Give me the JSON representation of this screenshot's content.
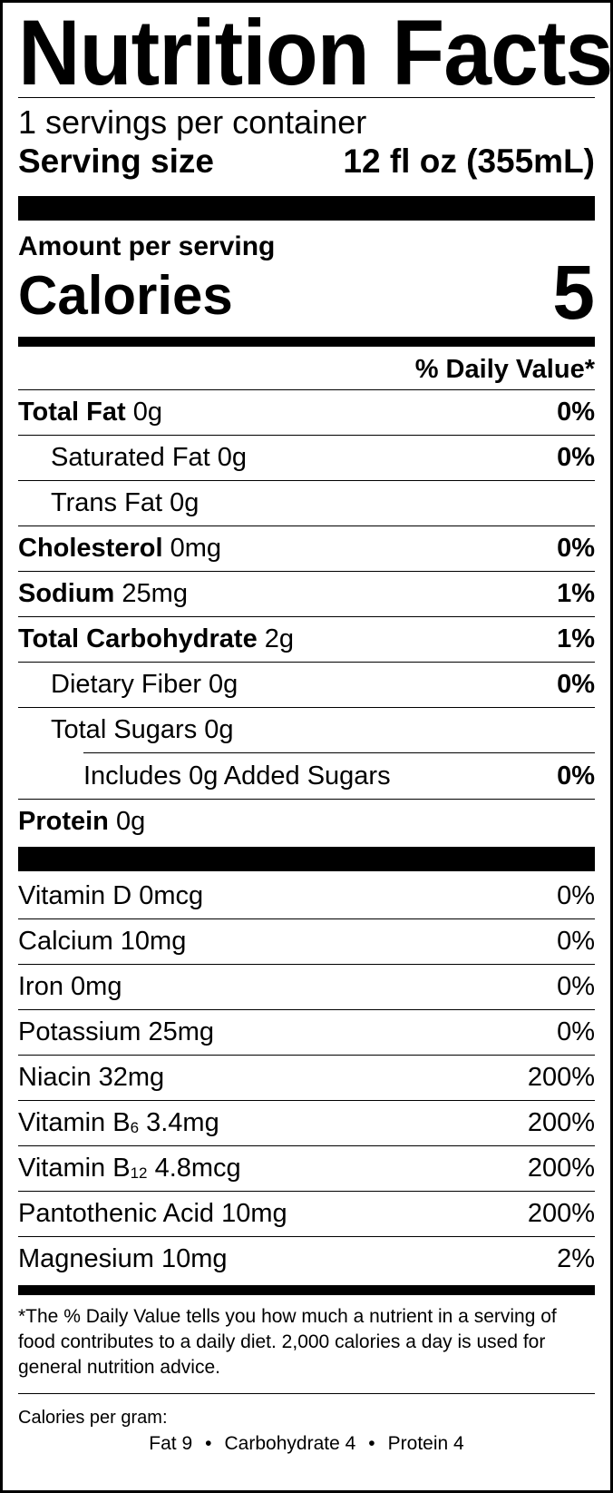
{
  "title": "Nutrition Facts",
  "servings_per_container": "1 servings per container",
  "serving_size": {
    "label": "Serving size",
    "value": "12 fl oz (355mL)"
  },
  "amount_per_serving": "Amount per serving",
  "calories": {
    "label": "Calories",
    "value": "5"
  },
  "daily_value_header": "% Daily Value*",
  "nutrients": {
    "total_fat": {
      "label": "Total Fat",
      "amount": "0g",
      "dv": "0%"
    },
    "saturated_fat": {
      "label": "Saturated Fat 0g",
      "dv": "0%"
    },
    "trans_fat": {
      "label": "Trans Fat 0g"
    },
    "cholesterol": {
      "label": "Cholesterol",
      "amount": "0mg",
      "dv": "0%"
    },
    "sodium": {
      "label": "Sodium",
      "amount": "25mg",
      "dv": "1%"
    },
    "total_carbohydrate": {
      "label": "Total Carbohydrate",
      "amount": "2g",
      "dv": "1%"
    },
    "dietary_fiber": {
      "label": "Dietary Fiber 0g",
      "dv": "0%"
    },
    "total_sugars": {
      "label": "Total Sugars 0g"
    },
    "added_sugars": {
      "label": "Includes 0g Added Sugars",
      "dv": "0%"
    },
    "protein": {
      "label": "Protein",
      "amount": "0g"
    }
  },
  "vitamins": {
    "vitamin_d": {
      "label": "Vitamin D 0mcg",
      "dv": "0%"
    },
    "calcium": {
      "label": "Calcium 10mg",
      "dv": "0%"
    },
    "iron": {
      "label": "Iron 0mg",
      "dv": "0%"
    },
    "potassium": {
      "label": "Potassium 25mg",
      "dv": "0%"
    },
    "niacin": {
      "label": "Niacin 32mg",
      "dv": "200%"
    },
    "vitamin_b6": {
      "label": "Vitamin B",
      "sub": "6",
      "amount": "3.4mg",
      "dv": "200%"
    },
    "vitamin_b12": {
      "label": "Vitamin B",
      "sub": "12",
      "amount": "4.8mcg",
      "dv": "200%"
    },
    "pantothenic_acid": {
      "label": "Pantothenic Acid 10mg",
      "dv": "200%"
    },
    "magnesium": {
      "label": "Magnesium 10mg",
      "dv": "2%"
    }
  },
  "footnote": "*The % Daily Value tells you how much a nutrient in a serving of food contributes to a daily diet. 2,000 calories a day is used for general nutrition advice.",
  "calories_per_gram": {
    "label": "Calories per gram:",
    "fat": "Fat 9",
    "carbohydrate": "Carbohydrate 4",
    "protein": "Protein 4",
    "separator": "•"
  }
}
